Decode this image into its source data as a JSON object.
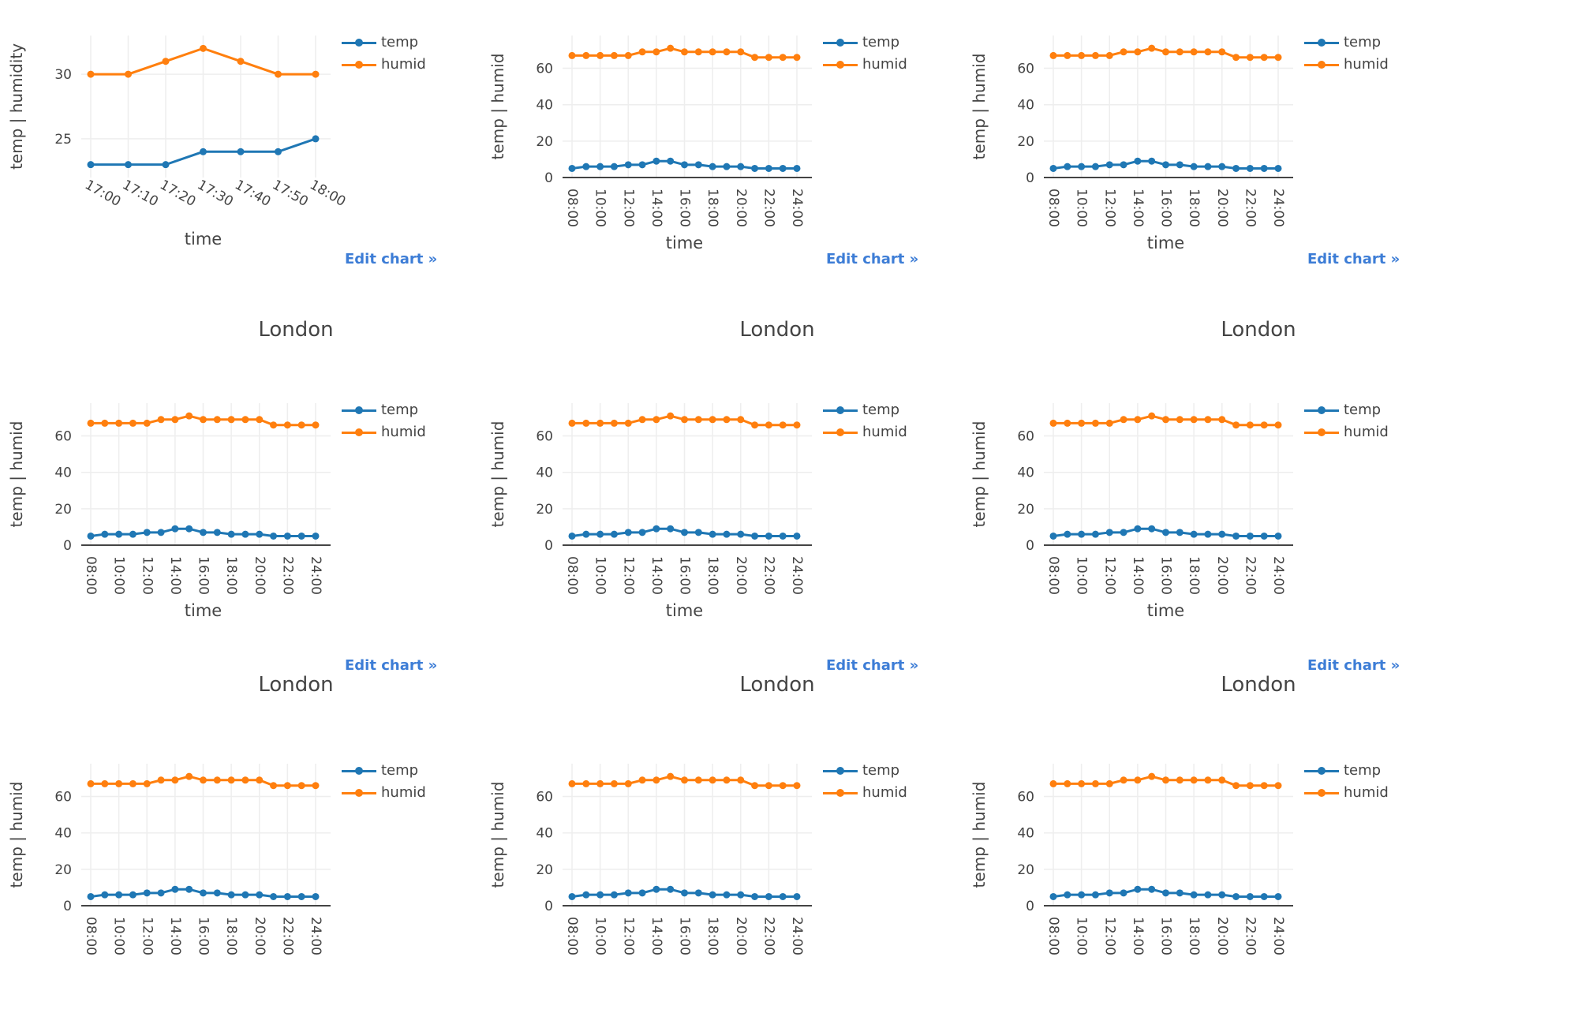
{
  "link_label": "Edit chart »",
  "colors": {
    "temp": "#1f77b4",
    "humid": "#ff7f0e",
    "grid": "#eeeeee",
    "axis": "#444444"
  },
  "chart_data": [
    {
      "type": "line",
      "title": "",
      "xlabel": "time",
      "ylabel": "temp | humidity",
      "categories": [
        "17:00",
        "17:10",
        "17:20",
        "17:30",
        "17:40",
        "17:50",
        "18:00"
      ],
      "series": [
        {
          "name": "temp",
          "values": [
            23,
            23,
            23,
            24,
            24,
            24,
            25
          ]
        },
        {
          "name": "humid",
          "values": [
            30,
            30,
            31,
            32,
            31,
            30,
            30
          ]
        }
      ],
      "ylim": [
        22,
        33
      ],
      "yticks": [
        25,
        30
      ],
      "legend": "top-right",
      "grid": true
    },
    {
      "type": "line",
      "title": "",
      "xlabel": "time",
      "ylabel": "temp | humid",
      "categories": [
        "08:00",
        "09:00",
        "10:00",
        "11:00",
        "12:00",
        "13:00",
        "14:00",
        "15:00",
        "16:00",
        "17:00",
        "18:00",
        "19:00",
        "20:00",
        "21:00",
        "22:00",
        "23:00",
        "24:00"
      ],
      "x_ticks": [
        "08:00",
        "10:00",
        "12:00",
        "14:00",
        "16:00",
        "18:00",
        "20:00",
        "22:00",
        "24:00"
      ],
      "series": [
        {
          "name": "temp",
          "values": [
            5,
            6,
            6,
            6,
            7,
            7,
            9,
            9,
            7,
            7,
            6,
            6,
            6,
            5,
            5,
            5,
            5
          ]
        },
        {
          "name": "humid",
          "values": [
            67,
            67,
            67,
            67,
            67,
            69,
            69,
            71,
            69,
            69,
            69,
            69,
            69,
            66,
            66,
            66,
            66
          ]
        }
      ],
      "ylim": [
        0,
        78
      ],
      "yticks": [
        0,
        20,
        40,
        60
      ],
      "legend": "top-right",
      "grid": true
    },
    {
      "type": "line",
      "title": "",
      "xlabel": "time",
      "ylabel": "temp | humid",
      "categories": [
        "08:00",
        "09:00",
        "10:00",
        "11:00",
        "12:00",
        "13:00",
        "14:00",
        "15:00",
        "16:00",
        "17:00",
        "18:00",
        "19:00",
        "20:00",
        "21:00",
        "22:00",
        "23:00",
        "24:00"
      ],
      "x_ticks": [
        "08:00",
        "10:00",
        "12:00",
        "14:00",
        "16:00",
        "18:00",
        "20:00",
        "22:00",
        "24:00"
      ],
      "series": [
        {
          "name": "temp",
          "values": [
            5,
            6,
            6,
            6,
            7,
            7,
            9,
            9,
            7,
            7,
            6,
            6,
            6,
            5,
            5,
            5,
            5
          ]
        },
        {
          "name": "humid",
          "values": [
            67,
            67,
            67,
            67,
            67,
            69,
            69,
            71,
            69,
            69,
            69,
            69,
            69,
            66,
            66,
            66,
            66
          ]
        }
      ],
      "ylim": [
        0,
        78
      ],
      "yticks": [
        0,
        20,
        40,
        60
      ],
      "legend": "top-right",
      "grid": true
    },
    {
      "type": "line",
      "title": "London",
      "xlabel": "time",
      "ylabel": "temp | humid",
      "categories": [
        "08:00",
        "09:00",
        "10:00",
        "11:00",
        "12:00",
        "13:00",
        "14:00",
        "15:00",
        "16:00",
        "17:00",
        "18:00",
        "19:00",
        "20:00",
        "21:00",
        "22:00",
        "23:00",
        "24:00"
      ],
      "x_ticks": [
        "08:00",
        "10:00",
        "12:00",
        "14:00",
        "16:00",
        "18:00",
        "20:00",
        "22:00",
        "24:00"
      ],
      "series": [
        {
          "name": "temp",
          "values": [
            5,
            6,
            6,
            6,
            7,
            7,
            9,
            9,
            7,
            7,
            6,
            6,
            6,
            5,
            5,
            5,
            5
          ]
        },
        {
          "name": "humid",
          "values": [
            67,
            67,
            67,
            67,
            67,
            69,
            69,
            71,
            69,
            69,
            69,
            69,
            69,
            66,
            66,
            66,
            66
          ]
        }
      ],
      "ylim": [
        0,
        78
      ],
      "yticks": [
        0,
        20,
        40,
        60
      ],
      "legend": "top-right",
      "grid": true
    },
    {
      "type": "line",
      "title": "London",
      "xlabel": "time",
      "ylabel": "temp | humid",
      "categories": [
        "08:00",
        "09:00",
        "10:00",
        "11:00",
        "12:00",
        "13:00",
        "14:00",
        "15:00",
        "16:00",
        "17:00",
        "18:00",
        "19:00",
        "20:00",
        "21:00",
        "22:00",
        "23:00",
        "24:00"
      ],
      "x_ticks": [
        "08:00",
        "10:00",
        "12:00",
        "14:00",
        "16:00",
        "18:00",
        "20:00",
        "22:00",
        "24:00"
      ],
      "series": [
        {
          "name": "temp",
          "values": [
            5,
            6,
            6,
            6,
            7,
            7,
            9,
            9,
            7,
            7,
            6,
            6,
            6,
            5,
            5,
            5,
            5
          ]
        },
        {
          "name": "humid",
          "values": [
            67,
            67,
            67,
            67,
            67,
            69,
            69,
            71,
            69,
            69,
            69,
            69,
            69,
            66,
            66,
            66,
            66
          ]
        }
      ],
      "ylim": [
        0,
        78
      ],
      "yticks": [
        0,
        20,
        40,
        60
      ],
      "legend": "top-right",
      "grid": true
    },
    {
      "type": "line",
      "title": "London",
      "xlabel": "time",
      "ylabel": "temp | humid",
      "categories": [
        "08:00",
        "09:00",
        "10:00",
        "11:00",
        "12:00",
        "13:00",
        "14:00",
        "15:00",
        "16:00",
        "17:00",
        "18:00",
        "19:00",
        "20:00",
        "21:00",
        "22:00",
        "23:00",
        "24:00"
      ],
      "x_ticks": [
        "08:00",
        "10:00",
        "12:00",
        "14:00",
        "16:00",
        "18:00",
        "20:00",
        "22:00",
        "24:00"
      ],
      "series": [
        {
          "name": "temp",
          "values": [
            5,
            6,
            6,
            6,
            7,
            7,
            9,
            9,
            7,
            7,
            6,
            6,
            6,
            5,
            5,
            5,
            5
          ]
        },
        {
          "name": "humid",
          "values": [
            67,
            67,
            67,
            67,
            67,
            69,
            69,
            71,
            69,
            69,
            69,
            69,
            69,
            66,
            66,
            66,
            66
          ]
        }
      ],
      "ylim": [
        0,
        78
      ],
      "yticks": [
        0,
        20,
        40,
        60
      ],
      "legend": "top-right",
      "grid": true
    },
    {
      "type": "line",
      "title": "London",
      "xlabel": "",
      "ylabel": "temp | humid",
      "categories": [
        "08:00",
        "09:00",
        "10:00",
        "11:00",
        "12:00",
        "13:00",
        "14:00",
        "15:00",
        "16:00",
        "17:00",
        "18:00",
        "19:00",
        "20:00",
        "21:00",
        "22:00",
        "23:00",
        "24:00"
      ],
      "x_ticks": [
        "08:00",
        "10:00",
        "12:00",
        "14:00",
        "16:00",
        "18:00",
        "20:00",
        "22:00",
        "24:00"
      ],
      "series": [
        {
          "name": "temp",
          "values": [
            5,
            6,
            6,
            6,
            7,
            7,
            9,
            9,
            7,
            7,
            6,
            6,
            6,
            5,
            5,
            5,
            5
          ]
        },
        {
          "name": "humid",
          "values": [
            67,
            67,
            67,
            67,
            67,
            69,
            69,
            71,
            69,
            69,
            69,
            69,
            69,
            66,
            66,
            66,
            66
          ]
        }
      ],
      "ylim": [
        0,
        78
      ],
      "yticks": [
        0,
        20,
        40,
        60
      ],
      "legend": "top-right",
      "grid": true
    },
    {
      "type": "line",
      "title": "London",
      "xlabel": "",
      "ylabel": "temp | humid",
      "categories": [
        "08:00",
        "09:00",
        "10:00",
        "11:00",
        "12:00",
        "13:00",
        "14:00",
        "15:00",
        "16:00",
        "17:00",
        "18:00",
        "19:00",
        "20:00",
        "21:00",
        "22:00",
        "23:00",
        "24:00"
      ],
      "x_ticks": [
        "08:00",
        "10:00",
        "12:00",
        "14:00",
        "16:00",
        "18:00",
        "20:00",
        "22:00",
        "24:00"
      ],
      "series": [
        {
          "name": "temp",
          "values": [
            5,
            6,
            6,
            6,
            7,
            7,
            9,
            9,
            7,
            7,
            6,
            6,
            6,
            5,
            5,
            5,
            5
          ]
        },
        {
          "name": "humid",
          "values": [
            67,
            67,
            67,
            67,
            67,
            69,
            69,
            71,
            69,
            69,
            69,
            69,
            69,
            66,
            66,
            66,
            66
          ]
        }
      ],
      "ylim": [
        0,
        78
      ],
      "yticks": [
        0,
        20,
        40,
        60
      ],
      "legend": "top-right",
      "grid": true
    },
    {
      "type": "line",
      "title": "London",
      "xlabel": "",
      "ylabel": "temp | humid",
      "categories": [
        "08:00",
        "09:00",
        "10:00",
        "11:00",
        "12:00",
        "13:00",
        "14:00",
        "15:00",
        "16:00",
        "17:00",
        "18:00",
        "19:00",
        "20:00",
        "21:00",
        "22:00",
        "23:00",
        "24:00"
      ],
      "x_ticks": [
        "08:00",
        "10:00",
        "12:00",
        "14:00",
        "16:00",
        "18:00",
        "20:00",
        "22:00",
        "24:00"
      ],
      "series": [
        {
          "name": "temp",
          "values": [
            5,
            6,
            6,
            6,
            7,
            7,
            9,
            9,
            7,
            7,
            6,
            6,
            6,
            5,
            5,
            5,
            5
          ]
        },
        {
          "name": "humid",
          "values": [
            67,
            67,
            67,
            67,
            67,
            69,
            69,
            71,
            69,
            69,
            69,
            69,
            69,
            66,
            66,
            66,
            66
          ]
        }
      ],
      "ylim": [
        0,
        78
      ],
      "yticks": [
        0,
        20,
        40,
        60
      ],
      "legend": "top-right",
      "grid": true
    }
  ]
}
